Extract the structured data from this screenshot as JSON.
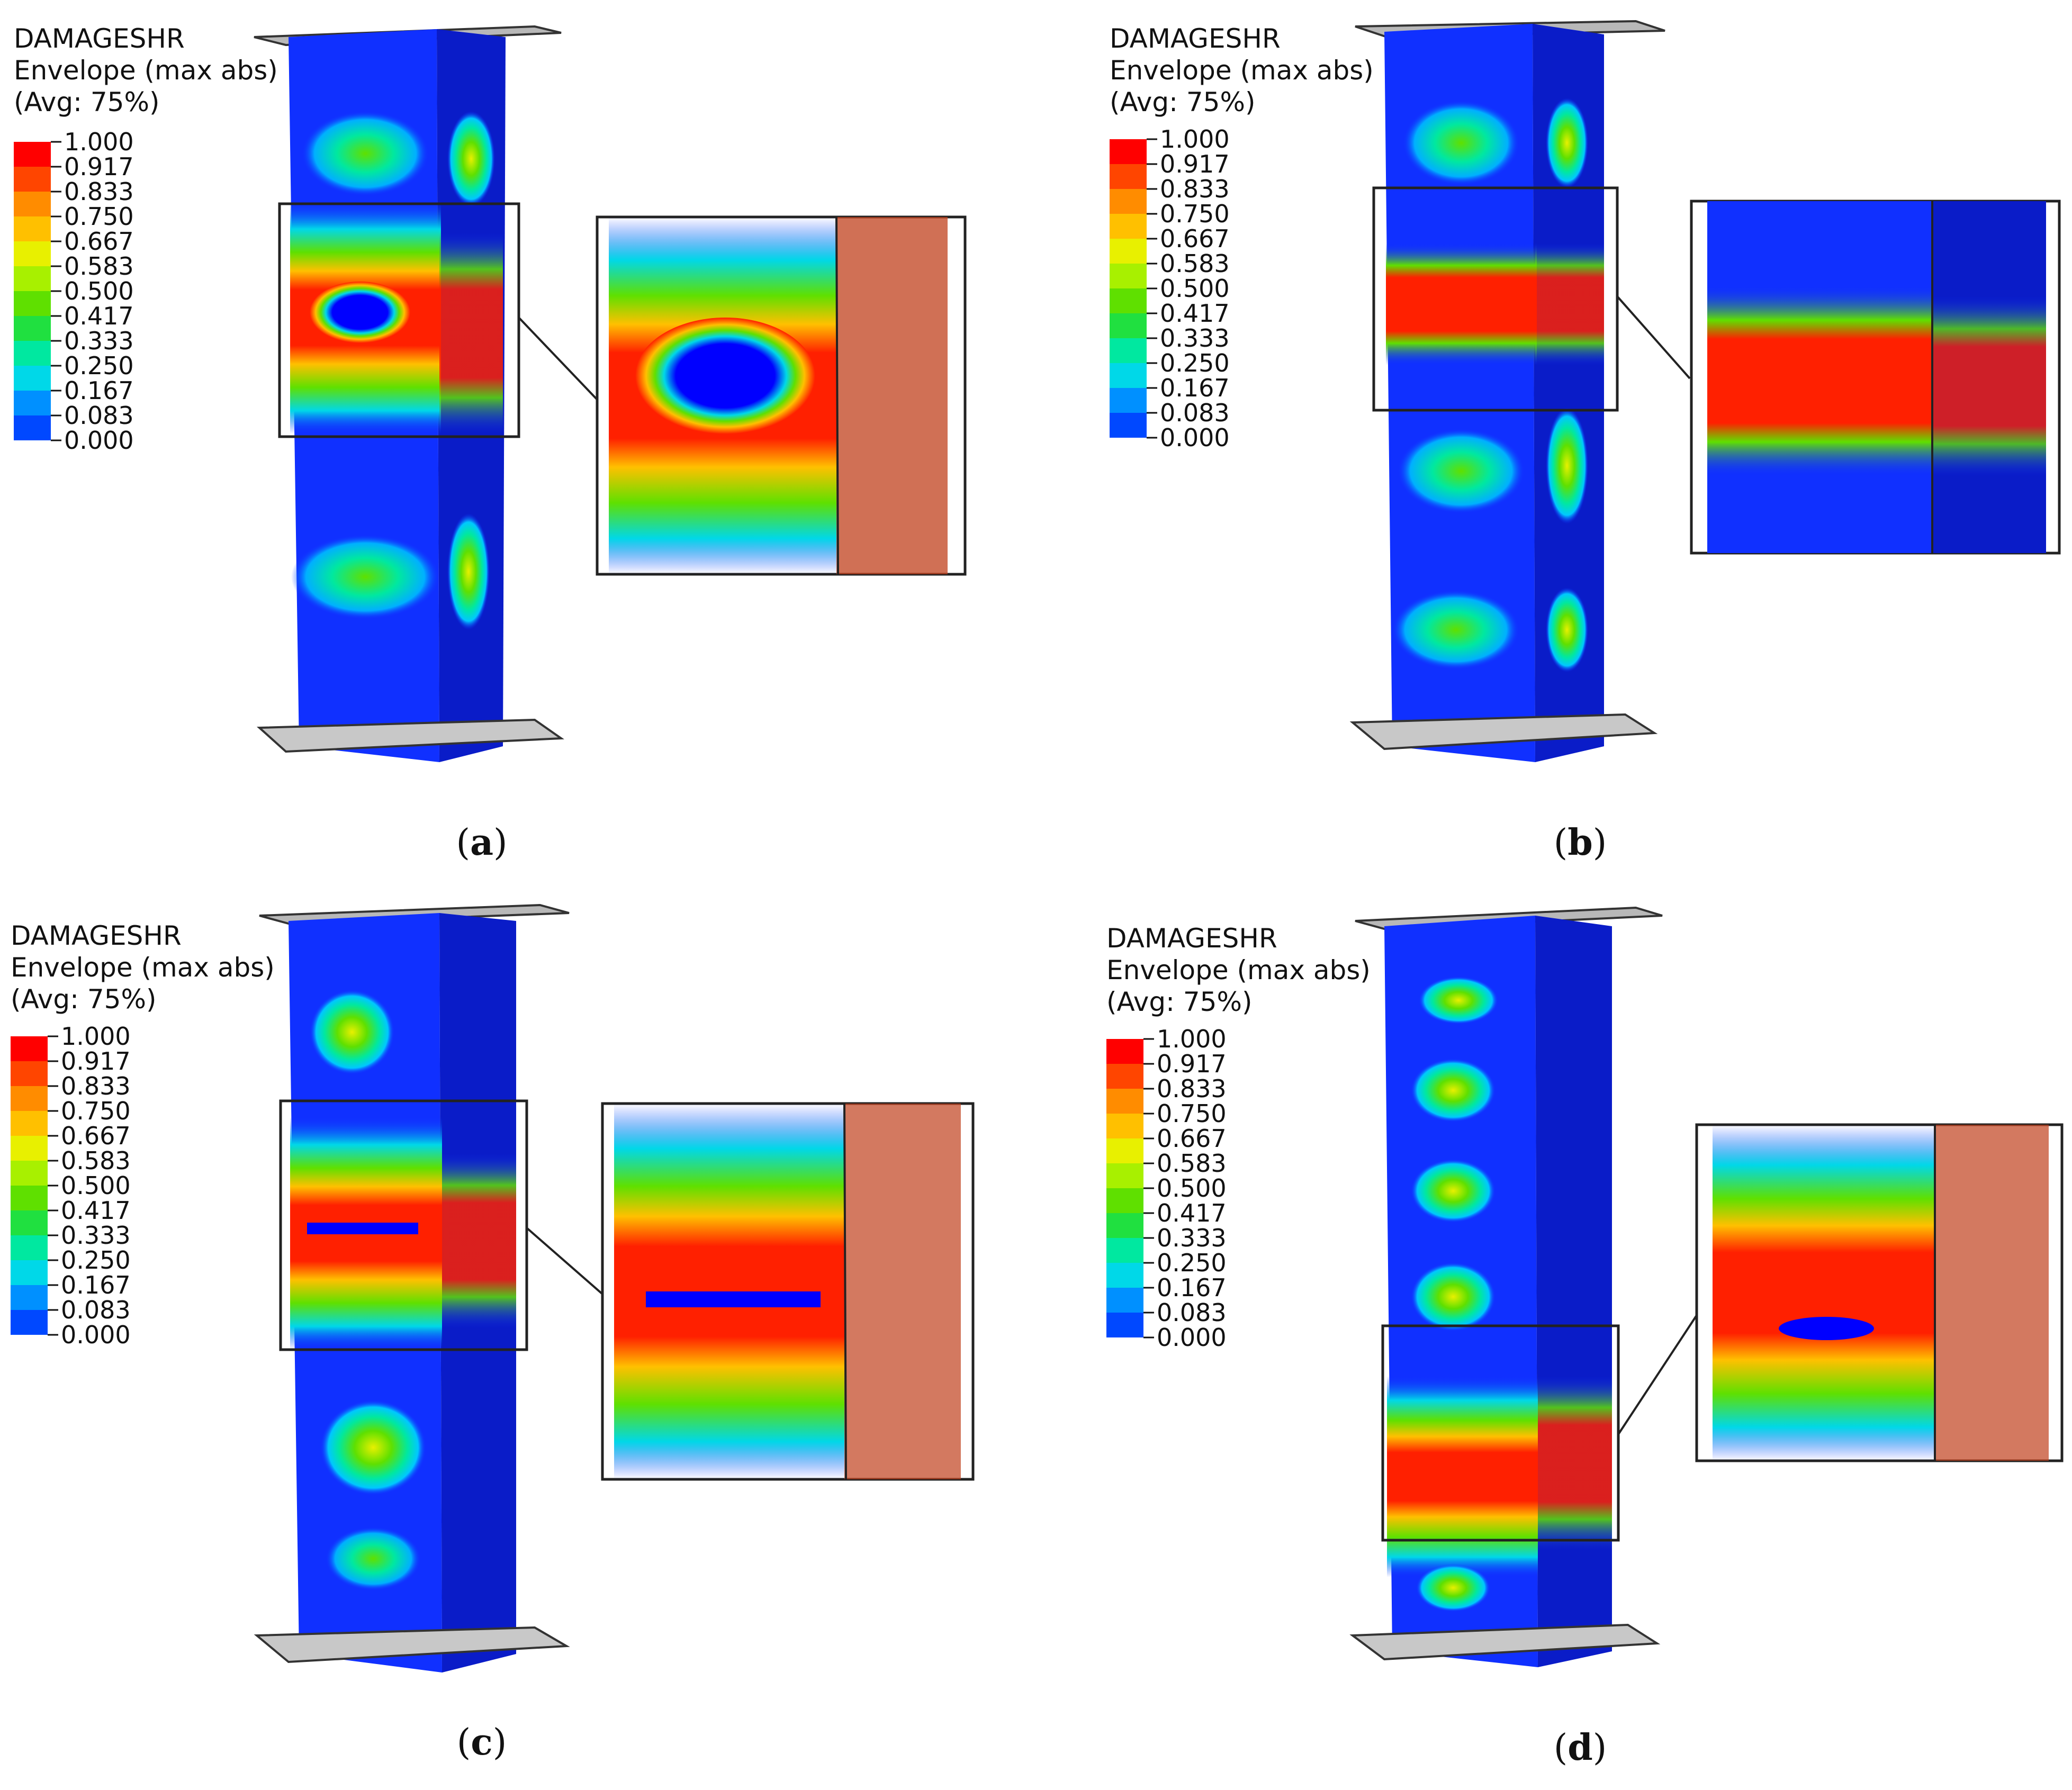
{
  "legend": {
    "title": "DAMAGESHR",
    "subtitle": "Envelope (max abs)",
    "avg": "(Avg: 75%)",
    "levels": [
      "1.000",
      "0.917",
      "0.833",
      "0.750",
      "0.667",
      "0.583",
      "0.500",
      "0.417",
      "0.333",
      "0.250",
      "0.167",
      "0.083",
      "0.000"
    ],
    "colors": [
      "#ff0000",
      "#ff4500",
      "#ff8c00",
      "#ffc000",
      "#e8f000",
      "#a8f000",
      "#5fe000",
      "#20e040",
      "#00e8a0",
      "#00d8e8",
      "#0090ff",
      "#0048ff",
      "#0000ff"
    ]
  },
  "panels": [
    {
      "id": "a",
      "caption_open": "(",
      "caption_letter": "a",
      "caption_close": ")"
    },
    {
      "id": "b",
      "caption_open": "(",
      "caption_letter": "b",
      "caption_close": ")"
    },
    {
      "id": "c",
      "caption_open": "(",
      "caption_letter": "c",
      "caption_close": ")"
    },
    {
      "id": "d",
      "caption_open": "(",
      "caption_letter": "d",
      "caption_close": ")"
    }
  ],
  "colors": {
    "column_face": "#1030ff",
    "column_side": "#0a1cc8",
    "damage_red": "#ff1010",
    "plate": "#c8c8c8"
  }
}
